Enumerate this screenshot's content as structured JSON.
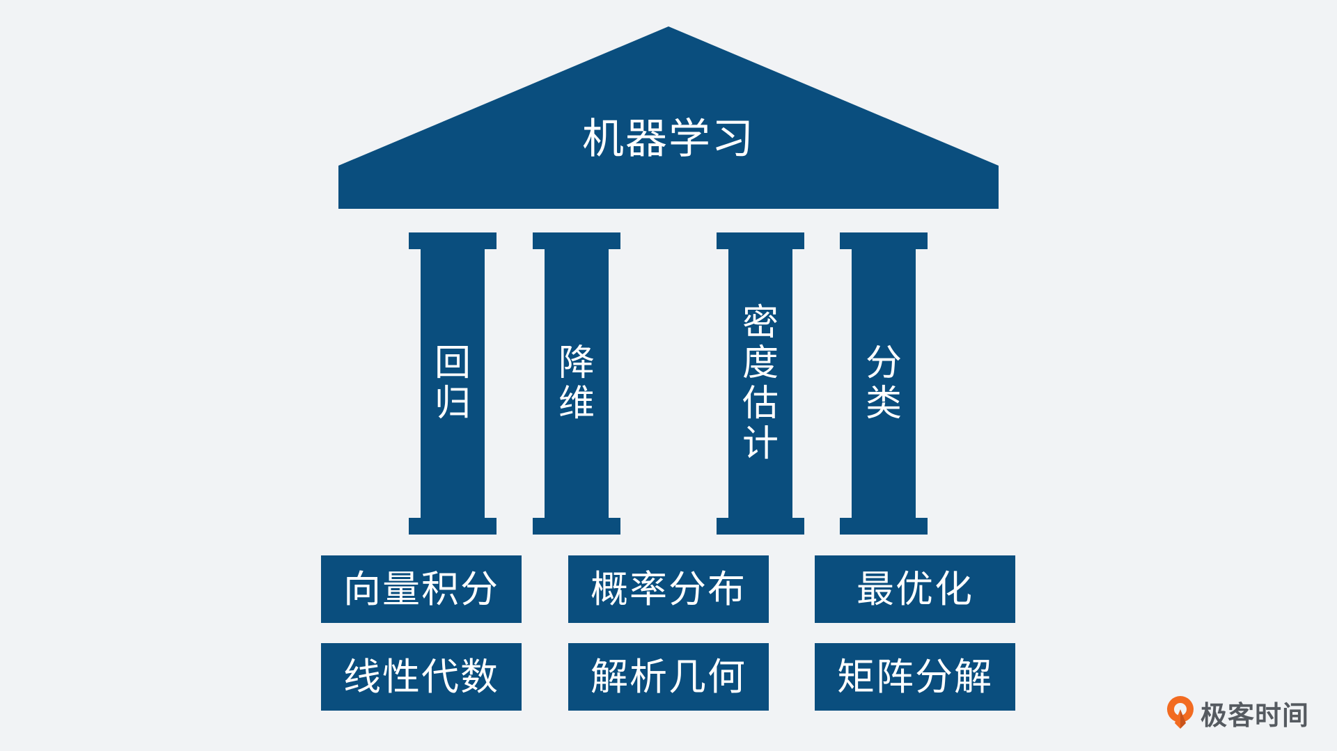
{
  "colors": {
    "background": "#f1f3f5",
    "primary": "#0a4e7e",
    "text": "#ffffff",
    "brand_accent": "#f26b21",
    "brand_text": "#555a60"
  },
  "roof": {
    "title": "机器学习"
  },
  "pillars": [
    {
      "label": "回归"
    },
    {
      "label": "降维"
    },
    {
      "label": "密度估计"
    },
    {
      "label": "分类"
    }
  ],
  "foundation": {
    "row1": [
      "向量积分",
      "概率分布",
      "最优化"
    ],
    "row2": [
      "线性代数",
      "解析几何",
      "矩阵分解"
    ]
  },
  "brand": {
    "icon": "geektime-logo-icon",
    "name": "极客时间"
  }
}
